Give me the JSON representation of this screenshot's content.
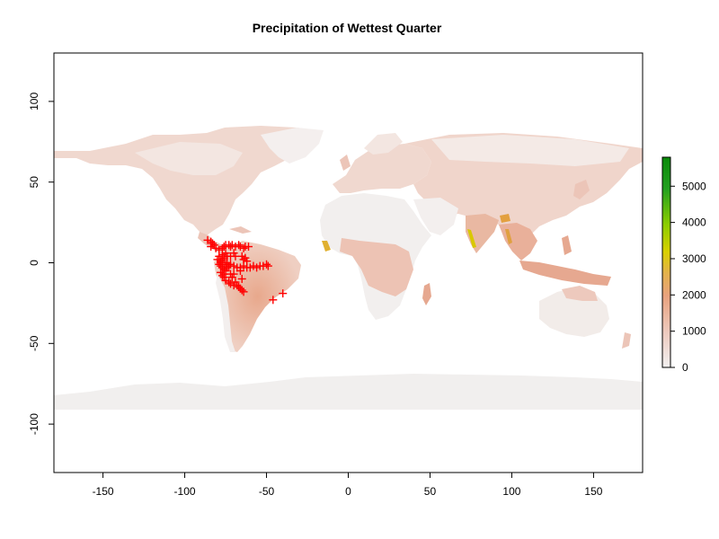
{
  "chart_data": {
    "type": "map",
    "title": "Precipitation of Wettest Quarter",
    "xlim": [
      -180,
      180
    ],
    "ylim": [
      -130,
      130
    ],
    "xticks": [
      -150,
      -100,
      -50,
      0,
      50,
      100,
      150
    ],
    "yticks": [
      100,
      50,
      0,
      -50,
      -100
    ],
    "colors": {
      "ocean": "#ffffff",
      "land_low": "#f3efee",
      "land_mid": "#ecc5b8",
      "land_high": "#e6a488",
      "wet_orange": "#e3a040",
      "wet_yellow": "#d9c800",
      "points": "#ff0000",
      "frame": "#000000"
    },
    "legend": {
      "position": "right",
      "range": [
        0,
        5800
      ],
      "ticks": [
        0,
        1000,
        2000,
        3000,
        4000,
        5000
      ],
      "tick_labels": [
        "0",
        "1000",
        "2000",
        "3000",
        "4000",
        "5000"
      ],
      "gradient": [
        "#f2f0f0",
        "#edc9bd",
        "#e8a27e",
        "#e3b24a",
        "#d9d000",
        "#8ccd00",
        "#22a020",
        "#0a8a0a"
      ]
    },
    "occurrence_points": [
      [
        -86,
        14
      ],
      [
        -84,
        13
      ],
      [
        -83,
        12
      ],
      [
        -82,
        11
      ],
      [
        -84,
        10
      ],
      [
        -81,
        9
      ],
      [
        -79,
        8
      ],
      [
        -77,
        9
      ],
      [
        -76,
        10
      ],
      [
        -75,
        11
      ],
      [
        -73,
        11
      ],
      [
        -72,
        10
      ],
      [
        -71,
        11
      ],
      [
        -69,
        10
      ],
      [
        -67,
        11
      ],
      [
        -66,
        10
      ],
      [
        -64,
        9
      ],
      [
        -63,
        10
      ],
      [
        -61,
        10
      ],
      [
        -75,
        6
      ],
      [
        -77,
        5
      ],
      [
        -76,
        3
      ],
      [
        -77,
        2
      ],
      [
        -78,
        1
      ],
      [
        -78,
        0
      ],
      [
        -79,
        -1
      ],
      [
        -78,
        -2
      ],
      [
        -77,
        -3
      ],
      [
        -76,
        -4
      ],
      [
        -75,
        -5
      ],
      [
        -74,
        -3
      ],
      [
        -73,
        -2
      ],
      [
        -74,
        0
      ],
      [
        -75,
        -1
      ],
      [
        -72,
        -1
      ],
      [
        -70,
        -2
      ],
      [
        -68,
        -3
      ],
      [
        -66,
        -3
      ],
      [
        -64,
        -2
      ],
      [
        -62,
        -3
      ],
      [
        -60,
        -3
      ],
      [
        -58,
        -2
      ],
      [
        -56,
        -3
      ],
      [
        -54,
        -2
      ],
      [
        -52,
        -2
      ],
      [
        -50,
        -1
      ],
      [
        -49,
        -2
      ],
      [
        -62,
        1
      ],
      [
        -64,
        2
      ],
      [
        -65,
        4
      ],
      [
        -63,
        3
      ],
      [
        -69,
        4
      ],
      [
        -72,
        4
      ],
      [
        -74,
        4
      ],
      [
        -70,
        6
      ],
      [
        -78,
        -6
      ],
      [
        -77,
        -8
      ],
      [
        -76,
        -9
      ],
      [
        -75,
        -11
      ],
      [
        -73,
        -12
      ],
      [
        -72,
        -13
      ],
      [
        -70,
        -14
      ],
      [
        -68,
        -14
      ],
      [
        -67,
        -15
      ],
      [
        -66,
        -16
      ],
      [
        -65,
        -17
      ],
      [
        -64,
        -18
      ],
      [
        -69,
        -12
      ],
      [
        -71,
        -9
      ],
      [
        -65,
        -10
      ],
      [
        -40,
        -19
      ],
      [
        -46,
        -23
      ],
      [
        -66,
        -5
      ],
      [
        -70,
        -7
      ],
      [
        -72,
        -7
      ],
      [
        -76,
        -7
      ],
      [
        -80,
        2
      ],
      [
        -79,
        4
      ]
    ]
  }
}
